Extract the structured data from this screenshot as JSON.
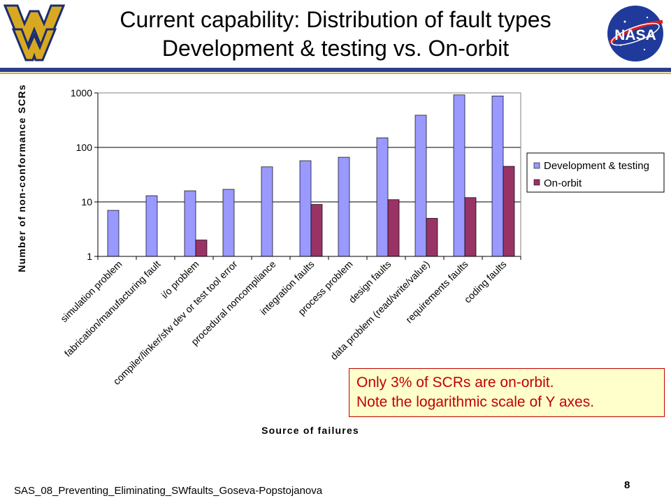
{
  "slide": {
    "title_line1": "Current capability: Distribution of fault types",
    "title_line2": "Development & testing vs. On-orbit",
    "footer": "SAS_08_Preventing_Eliminating_SWfaults_Goseva-Popstojanova",
    "page_number": "8",
    "note_line1": "Only 3% of SCRs are on-orbit.",
    "note_line2": "Note the logarithmic scale of Y axes.",
    "logo_left": "WV",
    "logo_right": "NASA"
  },
  "colors": {
    "dev": "#9999ff",
    "orbit": "#993366",
    "note_text": "#c00000",
    "note_bg": "#ffffcc",
    "rule": "#2b3f8f",
    "accent": "#d8b020"
  },
  "chart_data": {
    "type": "bar",
    "title": "",
    "xlabel": "Source of failures",
    "ylabel": "Number of non-conformance SCRs",
    "yscale": "log",
    "ylim": [
      1,
      1000
    ],
    "yticks": [
      1,
      10,
      100,
      1000
    ],
    "grid": "horizontal",
    "legend_position": "right",
    "categories": [
      "simulation problem",
      "fabrication/manufacturing fault",
      "i/o problem",
      "compiler/linker/sfw dev or test tool error",
      "procedural noncompliance",
      "integration faults",
      "process problem",
      "design faults",
      "data problem (read/write/value)",
      "requirements faults",
      "coding faults"
    ],
    "series": [
      {
        "name": "Development & testing",
        "values": [
          7,
          13,
          16,
          17,
          44,
          57,
          66,
          150,
          390,
          920,
          880
        ]
      },
      {
        "name": "On-orbit",
        "values": [
          null,
          null,
          2,
          null,
          null,
          9,
          null,
          11,
          5,
          12,
          45
        ]
      }
    ]
  }
}
